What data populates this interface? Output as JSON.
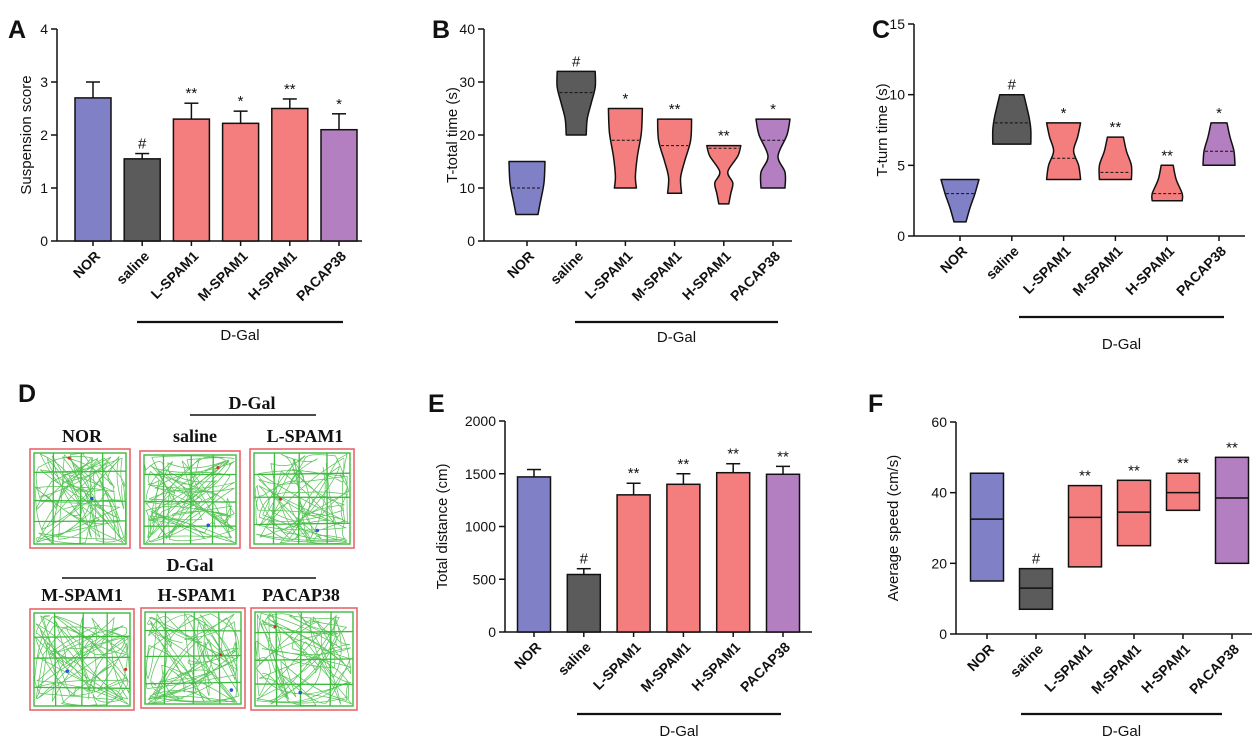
{
  "chart_data": [
    {
      "panel_label": "A",
      "type": "bar",
      "title": "",
      "xlabel": "",
      "ylabel": "Suspension score",
      "ylim": [
        0,
        4
      ],
      "yticks": [
        0,
        1,
        2,
        3,
        4
      ],
      "categories": [
        "NOR",
        "saline",
        "L-SPAM1",
        "M-SPAM1",
        "H-SPAM1",
        "PACAP38"
      ],
      "values": [
        2.7,
        1.55,
        2.3,
        2.22,
        2.5,
        2.1
      ],
      "error": [
        0.3,
        0.1,
        0.3,
        0.23,
        0.18,
        0.3
      ],
      "annotations": [
        "",
        "#",
        "**",
        "*",
        "**",
        "*"
      ],
      "group": {
        "label": "D-Gal"
      },
      "colors": [
        "#7f80c6",
        "#5b5b5b",
        "#f47e7e",
        "#f47e7e",
        "#f47e7e",
        "#b47fc0"
      ]
    },
    {
      "panel_label": "B",
      "type": "violin",
      "title": "",
      "xlabel": "",
      "ylabel": "T-total time (s)",
      "ylim": [
        0,
        40
      ],
      "yticks": [
        0,
        10,
        20,
        30,
        40
      ],
      "categories": [
        "NOR",
        "saline",
        "L-SPAM1",
        "M-SPAM1",
        "H-SPAM1",
        "PACAP38"
      ],
      "min": [
        5,
        20,
        10,
        9,
        7,
        10
      ],
      "max": [
        15,
        32,
        25,
        23,
        18,
        23
      ],
      "median": [
        10,
        28,
        19,
        18,
        17.5,
        19
      ],
      "annotations": [
        "",
        "#",
        "*",
        "**",
        "**",
        "*"
      ],
      "group": {
        "label": "D-Gal"
      },
      "colors": [
        "#7f80c6",
        "#5b5b5b",
        "#f47e7e",
        "#f47e7e",
        "#f47e7e",
        "#b47fc0"
      ]
    },
    {
      "panel_label": "C",
      "type": "violin",
      "title": "",
      "xlabel": "",
      "ylabel": "T-turn time (s)",
      "ylim": [
        0,
        15
      ],
      "yticks": [
        0,
        5,
        10,
        15
      ],
      "categories": [
        "NOR",
        "saline",
        "L-SPAM1",
        "M-SPAM1",
        "H-SPAM1",
        "PACAP38"
      ],
      "min": [
        1,
        6.5,
        4,
        4,
        2.5,
        5
      ],
      "max": [
        4,
        10,
        8,
        7,
        5,
        8
      ],
      "median": [
        3,
        8,
        5.5,
        4.5,
        3,
        6
      ],
      "annotations": [
        "",
        "#",
        "*",
        "**",
        "**",
        "*"
      ],
      "group": {
        "label": "D-Gal"
      },
      "colors": [
        "#7f80c6",
        "#5b5b5b",
        "#f47e7e",
        "#f47e7e",
        "#f47e7e",
        "#b47fc0"
      ]
    },
    {
      "panel_label": "E",
      "type": "bar",
      "title": "",
      "xlabel": "",
      "ylabel": "Total distance (cm)",
      "ylim": [
        0,
        2000
      ],
      "yticks": [
        0,
        500,
        1000,
        1500,
        2000
      ],
      "categories": [
        "NOR",
        "saline",
        "L-SPAM1",
        "M-SPAM1",
        "H-SPAM1",
        "PACAP38"
      ],
      "values": [
        1470,
        545,
        1300,
        1400,
        1510,
        1495
      ],
      "error": [
        70,
        55,
        110,
        100,
        85,
        75
      ],
      "annotations": [
        "",
        "#",
        "**",
        "**",
        "**",
        "**"
      ],
      "group": {
        "label": "D-Gal"
      },
      "colors": [
        "#7f80c6",
        "#5b5b5b",
        "#f47e7e",
        "#f47e7e",
        "#f47e7e",
        "#b47fc0"
      ]
    },
    {
      "panel_label": "F",
      "type": "box",
      "title": "",
      "xlabel": "",
      "ylabel": "Average speed (cm/s)",
      "ylim": [
        0,
        60
      ],
      "yticks": [
        0,
        20,
        40,
        60
      ],
      "categories": [
        "NOR",
        "saline",
        "L-SPAM1",
        "M-SPAM1",
        "H-SPAM1",
        "PACAP38"
      ],
      "min": [
        15,
        7,
        19,
        25,
        35,
        20
      ],
      "max": [
        45.5,
        18.5,
        42,
        43.5,
        45.5,
        50
      ],
      "mean": [
        32.5,
        13,
        33,
        34.5,
        40,
        38.5
      ],
      "annotations": [
        "",
        "#",
        "**",
        "**",
        "**",
        "**"
      ],
      "group": {
        "label": "D-Gal"
      },
      "colors": [
        "#7f80c6",
        "#5b5b5b",
        "#f47e7e",
        "#f47e7e",
        "#f47e7e",
        "#b47fc0"
      ]
    }
  ],
  "panel_d": {
    "panel_label": "D",
    "group_label": "D-Gal",
    "row1": [
      "NOR",
      "saline",
      "L-SPAM1"
    ],
    "row2": [
      "M-SPAM1",
      "H-SPAM1",
      "PACAP38"
    ],
    "track_color": "#3dbb3d",
    "frame_color": "#e8666a"
  }
}
